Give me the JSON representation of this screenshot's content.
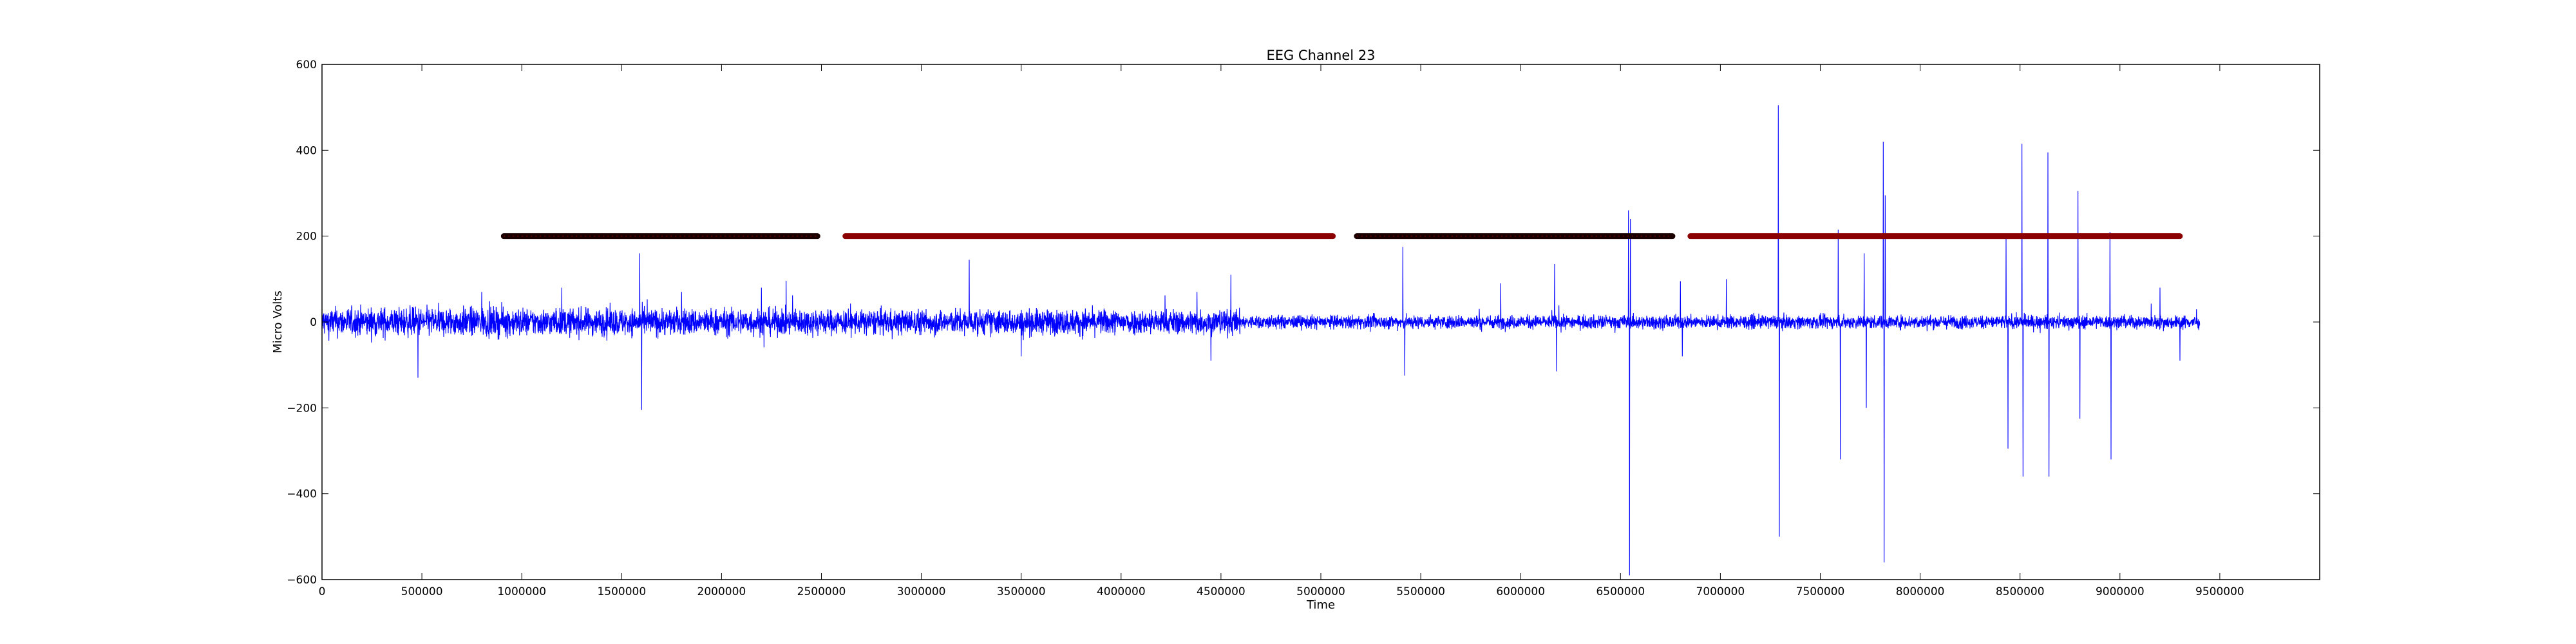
{
  "chart_data": {
    "type": "line",
    "title": "EEG Channel 23",
    "xlabel": "Time",
    "ylabel": "Micro Volts",
    "xlim": [
      0,
      10000000
    ],
    "ylim": [
      -600,
      600
    ],
    "x_ticks": [
      0,
      500000,
      1000000,
      1500000,
      2000000,
      2500000,
      3000000,
      3500000,
      4000000,
      4500000,
      5000000,
      5500000,
      6000000,
      6500000,
      7000000,
      7500000,
      8000000,
      8500000,
      9000000,
      9500000
    ],
    "x_tick_labels": [
      "0",
      "500000",
      "1000000",
      "1500000",
      "2000000",
      "2500000",
      "3000000",
      "3500000",
      "4000000",
      "4500000",
      "5000000",
      "5500000",
      "6000000",
      "6500000",
      "7000000",
      "7500000",
      "8000000",
      "8500000",
      "9000000",
      "9500000"
    ],
    "y_ticks": [
      -600,
      -400,
      -200,
      0,
      200,
      400,
      600
    ],
    "y_tick_labels": [
      "−600",
      "−400",
      "−200",
      "0",
      "200",
      "400",
      "600"
    ],
    "grid": false,
    "legend": "none",
    "signal": {
      "color": "#0000ff",
      "x_range": [
        0,
        9400000
      ],
      "baseline_amplitude_segments": [
        {
          "x": [
            0,
            1000000
          ],
          "amplitude": 30
        },
        {
          "x": [
            1000000,
            2500000
          ],
          "amplitude": 28
        },
        {
          "x": [
            2500000,
            4600000
          ],
          "amplitude": 26
        },
        {
          "x": [
            4600000,
            6500000
          ],
          "amplitude": 14
        },
        {
          "x": [
            6500000,
            9400000
          ],
          "amplitude": 14
        }
      ],
      "spikes": [
        {
          "x": 480000,
          "y": -130
        },
        {
          "x": 800000,
          "y": 70
        },
        {
          "x": 1200000,
          "y": 80
        },
        {
          "x": 1590000,
          "y": 160
        },
        {
          "x": 1600000,
          "y": -205
        },
        {
          "x": 1800000,
          "y": 70
        },
        {
          "x": 2200000,
          "y": 80
        },
        {
          "x": 3240000,
          "y": 145
        },
        {
          "x": 3500000,
          "y": -80
        },
        {
          "x": 4380000,
          "y": 70
        },
        {
          "x": 4550000,
          "y": 110
        },
        {
          "x": 4450000,
          "y": -90
        },
        {
          "x": 5410000,
          "y": 175
        },
        {
          "x": 5420000,
          "y": -125
        },
        {
          "x": 5900000,
          "y": 90
        },
        {
          "x": 6170000,
          "y": 135
        },
        {
          "x": 6180000,
          "y": -115
        },
        {
          "x": 6540000,
          "y": 260
        },
        {
          "x": 6545000,
          "y": -590
        },
        {
          "x": 6550000,
          "y": 240
        },
        {
          "x": 6800000,
          "y": 95
        },
        {
          "x": 6810000,
          "y": -80
        },
        {
          "x": 7030000,
          "y": 100
        },
        {
          "x": 7290000,
          "y": 505
        },
        {
          "x": 7295000,
          "y": -500
        },
        {
          "x": 7590000,
          "y": 215
        },
        {
          "x": 7600000,
          "y": -320
        },
        {
          "x": 7720000,
          "y": 160
        },
        {
          "x": 7730000,
          "y": -200
        },
        {
          "x": 7815000,
          "y": 420
        },
        {
          "x": 7820000,
          "y": -560
        },
        {
          "x": 7825000,
          "y": 295
        },
        {
          "x": 8430000,
          "y": 195
        },
        {
          "x": 8440000,
          "y": -295
        },
        {
          "x": 8510000,
          "y": 415
        },
        {
          "x": 8515000,
          "y": -360
        },
        {
          "x": 8640000,
          "y": 395
        },
        {
          "x": 8645000,
          "y": -360
        },
        {
          "x": 8790000,
          "y": 305
        },
        {
          "x": 8800000,
          "y": -225
        },
        {
          "x": 8950000,
          "y": 210
        },
        {
          "x": 8955000,
          "y": -320
        },
        {
          "x": 9200000,
          "y": 80
        },
        {
          "x": 9300000,
          "y": -90
        }
      ]
    },
    "markers": {
      "y": 200,
      "segments": [
        {
          "x_start": 910000,
          "x_end": 2480000,
          "color": "#1a0000",
          "edge_color": "#8b0000"
        },
        {
          "x_start": 2620000,
          "x_end": 5060000,
          "color": "#8b0000",
          "edge_color": "#8b0000"
        },
        {
          "x_start": 5180000,
          "x_end": 6760000,
          "color": "#1a0000",
          "edge_color": "#8b0000"
        },
        {
          "x_start": 6850000,
          "x_end": 9300000,
          "color": "#8b0000",
          "edge_color": "#8b0000"
        }
      ]
    }
  }
}
